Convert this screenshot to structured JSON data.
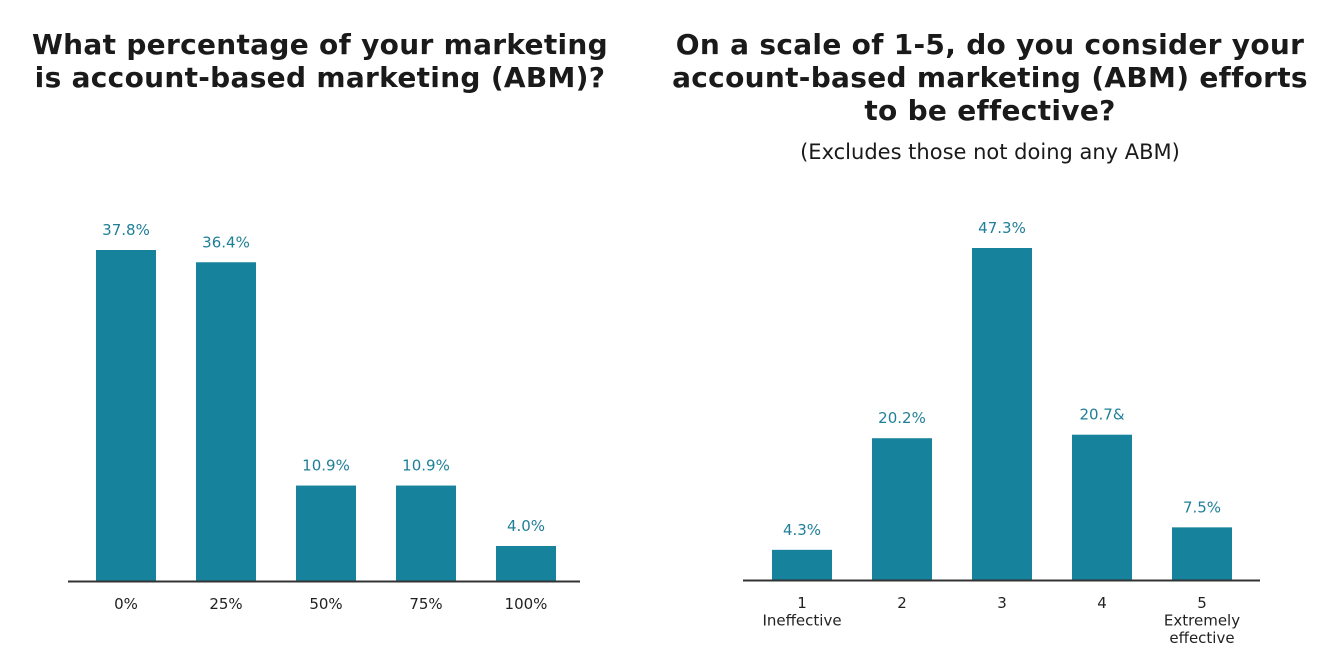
{
  "colors": {
    "bar": "#17829c",
    "value_label": "#1f7f98",
    "axis": "#333333",
    "text": "#1a1a1a"
  },
  "chart_data": [
    {
      "type": "bar",
      "title_lines": [
        "What percentage of your marketing",
        "is account-based marketing (ABM)?"
      ],
      "categories": [
        "0%",
        "25%",
        "50%",
        "75%",
        "100%"
      ],
      "values": [
        37.8,
        36.4,
        10.9,
        10.9,
        4.0
      ],
      "value_labels": [
        "37.8%",
        "36.4%",
        "10.9%",
        "10.9%",
        "4.0%"
      ],
      "xlabel": "",
      "ylabel": "",
      "ylim": [
        0,
        40
      ],
      "grid": false
    },
    {
      "type": "bar",
      "title_lines": [
        "On a scale of 1-5, do you consider your",
        "account-based marketing (ABM) efforts",
        "to be effective?"
      ],
      "subtitle": "(Excludes those not doing any ABM)",
      "categories": [
        [
          "1",
          "Ineffective"
        ],
        [
          "2"
        ],
        [
          "3"
        ],
        [
          "4"
        ],
        [
          "5",
          "Extremely",
          "effective"
        ]
      ],
      "values": [
        4.3,
        20.2,
        47.3,
        20.7,
        7.5
      ],
      "value_labels": [
        "4.3%",
        "20.2%",
        "47.3%",
        "20.7&",
        "7.5%"
      ],
      "xlabel": "",
      "ylabel": "",
      "ylim": [
        0,
        50
      ],
      "grid": false
    }
  ]
}
